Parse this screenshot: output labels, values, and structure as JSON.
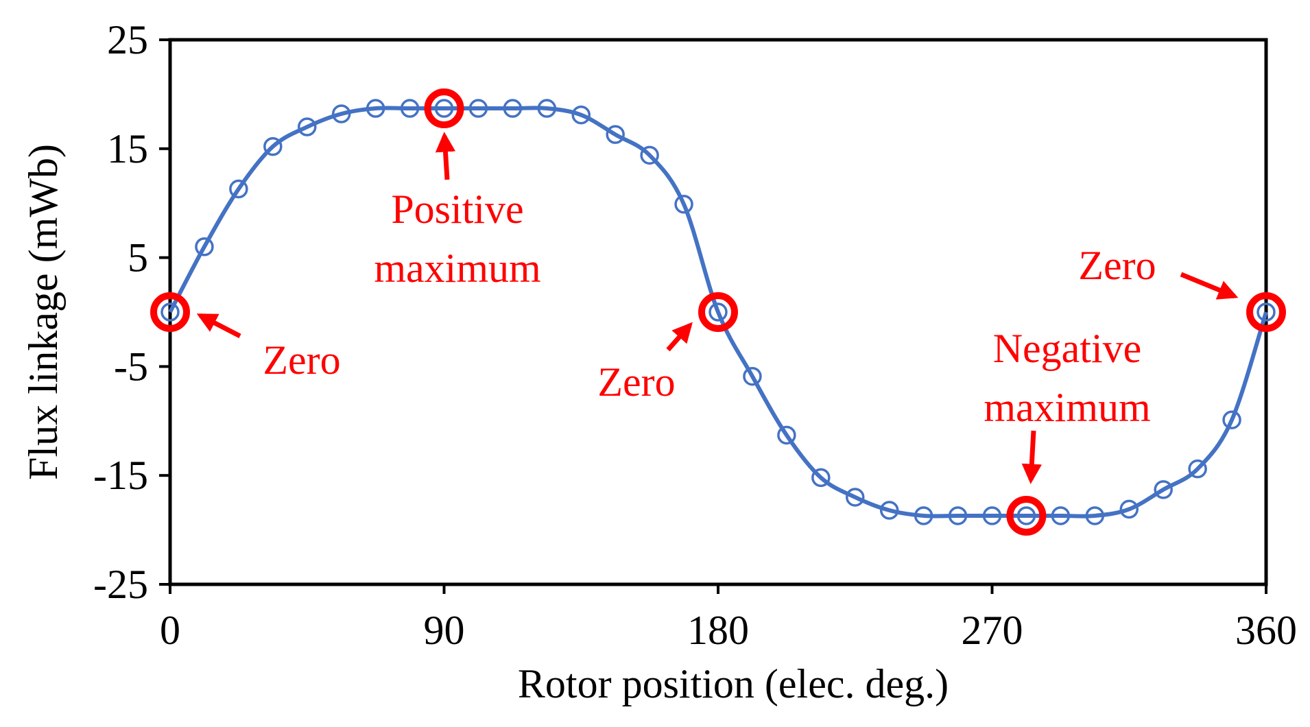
{
  "chart_data": {
    "type": "line",
    "title": "",
    "xlabel": "Rotor position (elec. deg.)",
    "ylabel": "Flux linkage (mWb)",
    "xlim": [
      0,
      360
    ],
    "ylim": [
      -25,
      25
    ],
    "xticks": [
      0,
      90,
      180,
      270,
      360
    ],
    "yticks": [
      25,
      15,
      5,
      -5,
      -15,
      -25
    ],
    "xtick_labels": [
      "0",
      "90",
      "180",
      "270",
      "360"
    ],
    "ytick_labels": [
      "25",
      "15",
      "5",
      "-5",
      "-15",
      "-25"
    ],
    "grid": false,
    "legend": "none",
    "series": [
      {
        "name": "Flux linkage",
        "color": "#4472C4",
        "marker": "open-circle",
        "x": [
          0,
          11.25,
          22.5,
          33.75,
          45,
          56.25,
          67.5,
          78.75,
          90,
          101.25,
          112.5,
          123.75,
          135,
          146.25,
          157.5,
          168.75,
          180,
          191.25,
          202.5,
          213.75,
          225,
          236.25,
          247.5,
          258.75,
          270,
          281.25,
          292.5,
          303.75,
          315,
          326.25,
          337.5,
          348.75,
          360
        ],
        "values": [
          0,
          6,
          11.3,
          15.2,
          17,
          18.2,
          18.7,
          18.7,
          18.7,
          18.7,
          18.7,
          18.7,
          18.1,
          16.3,
          14.4,
          9.9,
          0,
          -5.9,
          -11.3,
          -15.2,
          -17,
          -18.2,
          -18.7,
          -18.7,
          -18.7,
          -18.7,
          -18.7,
          -18.7,
          -18.1,
          -16.3,
          -14.4,
          -9.9,
          0
        ]
      }
    ],
    "highlights": [
      {
        "x": 0,
        "y": 0,
        "color": "#FF0000"
      },
      {
        "x": 90,
        "y": 18.7,
        "color": "#FF0000"
      },
      {
        "x": 180,
        "y": 0,
        "color": "#FF0000"
      },
      {
        "x": 281.25,
        "y": -18.7,
        "color": "#FF0000"
      },
      {
        "x": 360,
        "y": 0,
        "color": "#FF0000"
      }
    ],
    "annotations": [
      {
        "name": "annotation-zero-0",
        "lines": [
          "Zero"
        ],
        "color": "#FF0000"
      },
      {
        "name": "annotation-positive-maximum",
        "lines": [
          "Positive",
          "maximum"
        ],
        "color": "#FF0000"
      },
      {
        "name": "annotation-zero-180",
        "lines": [
          "Zero"
        ],
        "color": "#FF0000"
      },
      {
        "name": "annotation-negative-maximum",
        "lines": [
          "Negative",
          "maximum"
        ],
        "color": "#FF0000"
      },
      {
        "name": "annotation-zero-360",
        "lines": [
          "Zero"
        ],
        "color": "#FF0000"
      }
    ]
  }
}
